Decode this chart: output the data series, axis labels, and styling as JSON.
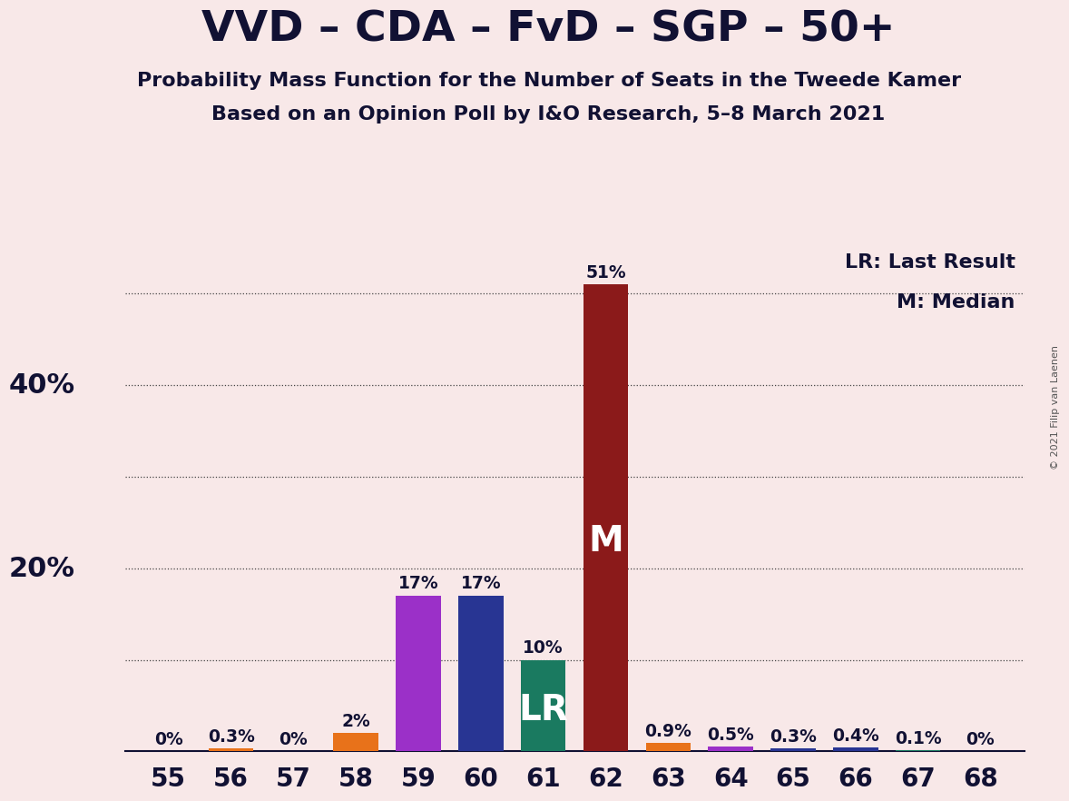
{
  "title": "VVD – CDA – FvD – SGP – 50+",
  "subtitle1": "Probability Mass Function for the Number of Seats in the Tweede Kamer",
  "subtitle2": "Based on an Opinion Poll by I&O Research, 5–8 March 2021",
  "copyright": "© 2021 Filip van Laenen",
  "background_color": "#f8e8e8",
  "seats": [
    55,
    56,
    57,
    58,
    59,
    60,
    61,
    62,
    63,
    64,
    65,
    66,
    67,
    68
  ],
  "values": [
    0.0,
    0.3,
    0.0,
    2.0,
    17.0,
    17.0,
    10.0,
    51.0,
    0.9,
    0.5,
    0.3,
    0.4,
    0.1,
    0.0
  ],
  "labels": [
    "0%",
    "0.3%",
    "0%",
    "2%",
    "17%",
    "17%",
    "10%",
    "51%",
    "0.9%",
    "0.5%",
    "0.3%",
    "0.4%",
    "0.1%",
    "0%"
  ],
  "bar_colors": [
    "#3a8a50",
    "#e8721a",
    "#3a8a50",
    "#e8721a",
    "#9b30c8",
    "#283593",
    "#1a7a60",
    "#8b1a1a",
    "#e8721a",
    "#9b30c8",
    "#283593",
    "#283593",
    "#1a7a60",
    "#3a8a50"
  ],
  "lr_seat": 61,
  "median_seat": 62,
  "lr_label": "LR",
  "median_label": "M",
  "legend_lr": "LR: Last Result",
  "legend_m": "M: Median",
  "grid_values": [
    10,
    20,
    30,
    40,
    50
  ],
  "ylim": [
    0,
    55
  ],
  "bar_width": 0.72,
  "title_fontsize": 34,
  "subtitle_fontsize": 16,
  "label_fontsize": 13.5,
  "tick_fontsize": 20,
  "ytick_label_fontsize": 22,
  "inside_label_fontsize": 28,
  "legend_fontsize": 16
}
